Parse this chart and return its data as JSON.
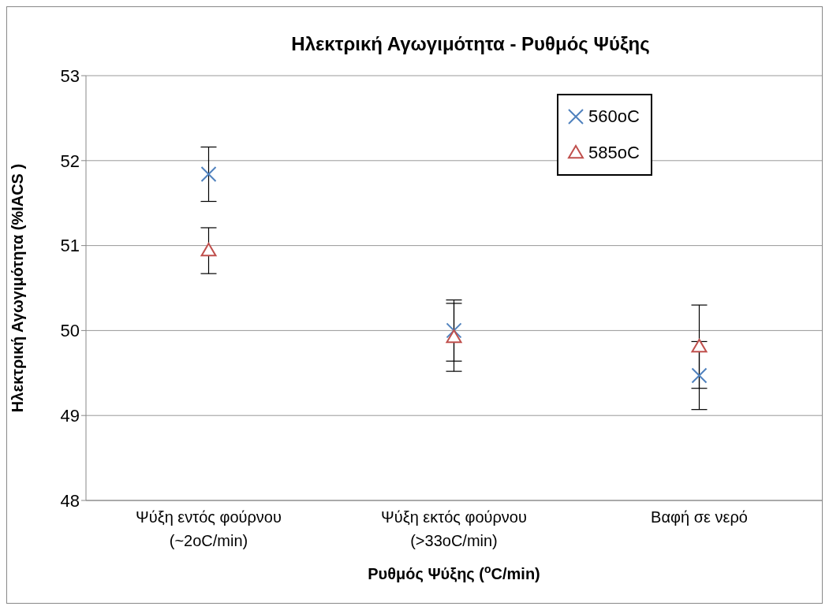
{
  "chart_data": {
    "type": "scatter",
    "title": "Ηλεκτρική Αγωγιμότητα - Ρυθμός Ψύξης",
    "xlabel": "Ρυθμός Ψύξης ($^{o}$C/min)",
    "ylabel": "Ηλεκτρική Αγωγιμότητα (%IACS )",
    "categories": [
      "Ψύξη εντός φούρνου (~2oC/min)",
      "Ψύξη εκτός φούρνου (>33oC/min)",
      "Βαφή σε νερό"
    ],
    "series": [
      {
        "name": "560oC",
        "color": "#4f81bd",
        "marker": "cross",
        "values": [
          51.84,
          50.0,
          49.47
        ],
        "errors": [
          0.32,
          0.36,
          0.4
        ]
      },
      {
        "name": "585oC",
        "color": "#c0504d",
        "marker": "triangle",
        "values": [
          50.94,
          49.92,
          49.81
        ],
        "errors": [
          0.27,
          0.4,
          0.49
        ]
      }
    ],
    "ylim": [
      48,
      53
    ],
    "yticks": [
      48,
      49,
      50,
      51,
      52,
      53
    ],
    "grid": "y",
    "legend": "top right"
  }
}
